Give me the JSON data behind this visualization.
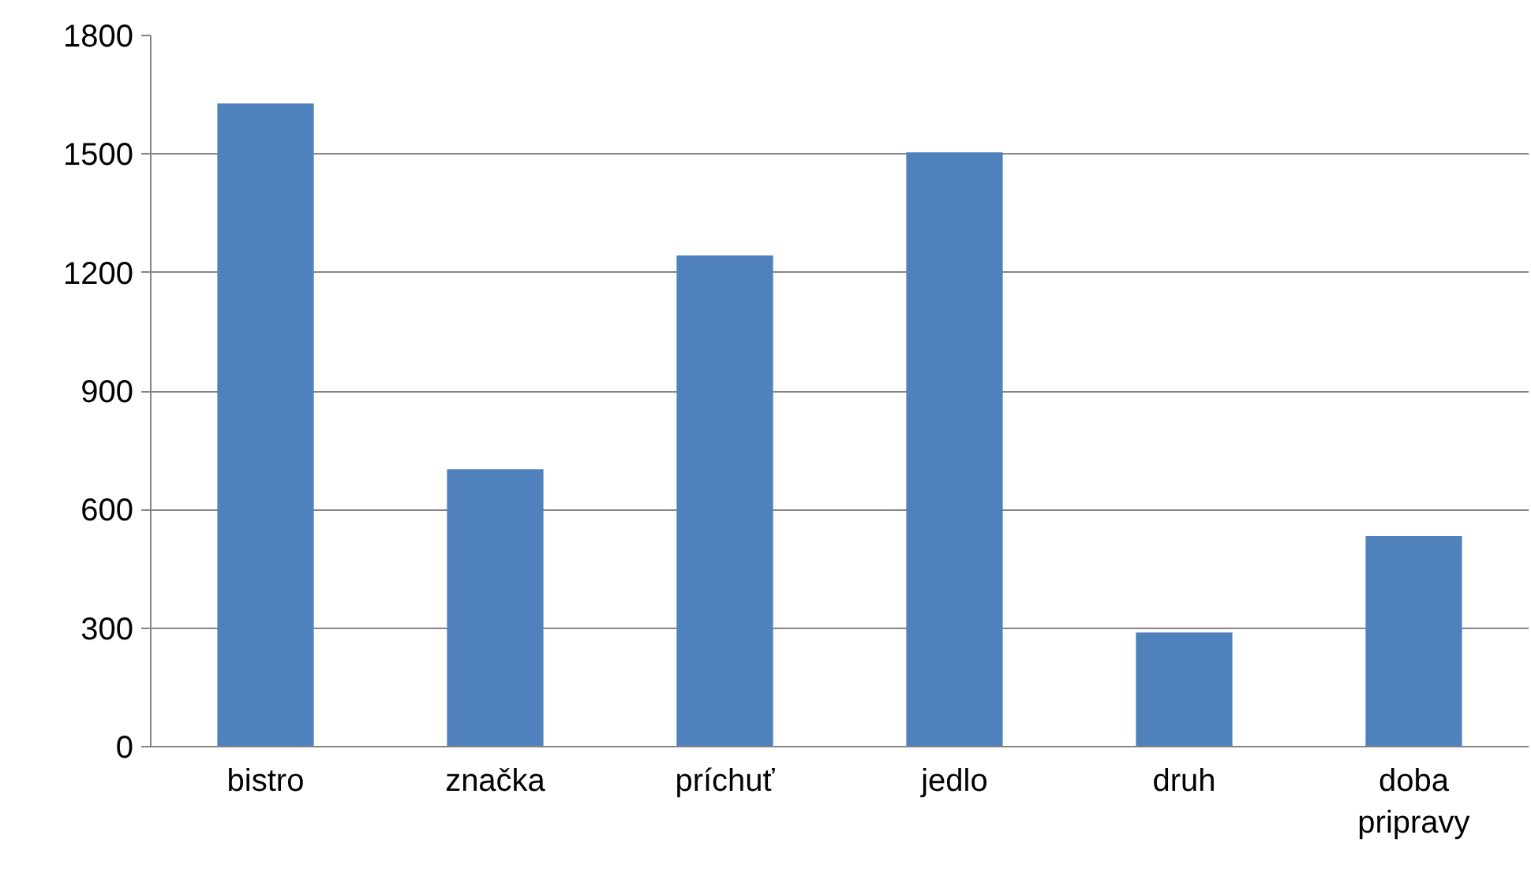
{
  "chart_data": {
    "type": "bar",
    "categories": [
      "bistro",
      "značka",
      "príchuť",
      "jedlo",
      "druh",
      "doba pripravy"
    ],
    "values": [
      1628,
      702,
      1243,
      1504,
      289,
      533
    ],
    "color": "#4f81bd",
    "ylim": [
      0,
      1800
    ],
    "yticks": [
      0,
      300,
      600,
      900,
      1200,
      1500,
      1800
    ],
    "grid": "y"
  }
}
